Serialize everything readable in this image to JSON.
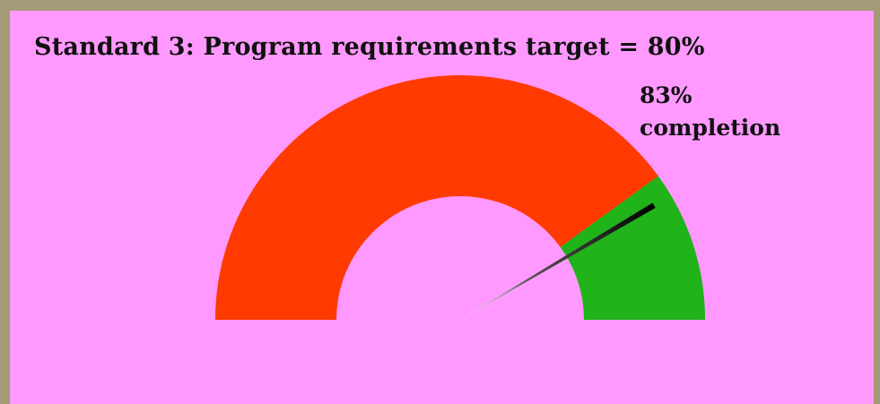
{
  "chart_data": {
    "type": "gauge",
    "title": "Standard 3: Program requirements target = 80%",
    "value": 83,
    "value_label": "83%",
    "value_caption": "completion",
    "target": 80,
    "min": 0,
    "max": 100,
    "bands": [
      {
        "name": "below-target",
        "from": 0,
        "to": 80,
        "color": "#ff3a00"
      },
      {
        "name": "at-or-above-target",
        "from": 80,
        "to": 100,
        "color": "#20b31a"
      }
    ],
    "needle_color": "#000000",
    "background_color": "#ff99ff",
    "frame_color": "#a39a78"
  }
}
